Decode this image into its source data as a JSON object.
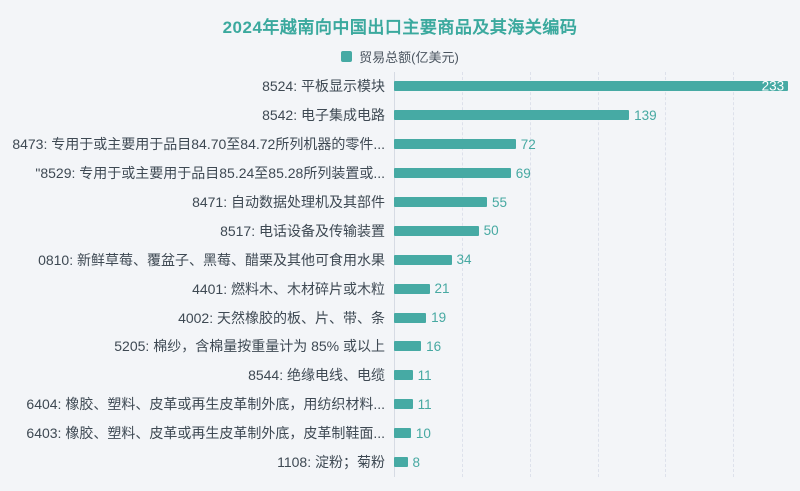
{
  "header": {
    "title": "2024年越南向中国出口主要商品及其海关编码"
  },
  "legend": {
    "swatch_icon": "legend-square-swatch",
    "label": "贸易总额(亿美元)"
  },
  "chart_data": {
    "type": "bar",
    "orientation": "horizontal",
    "title": "2024年越南向中国出口主要商品及其海关编码",
    "legend_label": "贸易总额(亿美元)",
    "legend_position": "top-center",
    "categories": [
      "8524: 平板显示模块",
      "8542: 电子集成电路",
      "8473: 专用于或主要用于品目84.70至84.72所列机器的零件...",
      "\"8529: 专用于或主要用于品目85.24至85.28所列装置或...",
      "8471: 自动数据处理机及其部件",
      "8517: 电话设备及传输装置",
      "0810: 新鲜草莓、覆盆子、黑莓、醋栗及其他可食用水果",
      "4401: 燃料木、木材碎片或木粒",
      "4002: 天然橡胶的板、片、带、条",
      "5205: 棉纱，含棉量按重量计为 85% 或以上",
      "8544: 绝缘电线、电缆",
      "6404: 橡胶、塑料、皮革或再生皮革制外底，用纺织材料...",
      "6403: 橡胶、塑料、皮革或再生皮革制外底，皮革制鞋面...",
      "1108: 淀粉；菊粉"
    ],
    "values": [
      233,
      139,
      72,
      69,
      55,
      50,
      34,
      21,
      19,
      16,
      11,
      11,
      10,
      8
    ],
    "xlabel": "",
    "ylabel": "",
    "xlim": [
      0,
      240
    ],
    "gridline_interval": 40,
    "grid": "vertical-dashed",
    "value_labels": "outside-end (inside-end white for max bar)",
    "colors": {
      "background": "#f3f5f8",
      "title": "#3ba99e",
      "bar": "#46aaa4",
      "value_label": "#47a9a2",
      "value_label_inside": "#ffffff",
      "category_label": "#3e4953",
      "legend_text": "#4b5560",
      "gridline": "#dde1eb",
      "axis_line": "#d6dbe4"
    }
  }
}
